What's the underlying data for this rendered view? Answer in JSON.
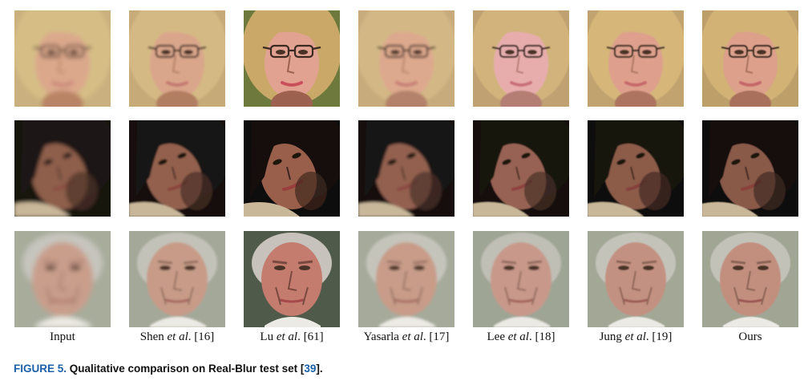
{
  "figure": {
    "columns": [
      {
        "pre": "Input",
        "italic": "",
        "post": ""
      },
      {
        "pre": "Shen ",
        "italic": "et al",
        "post": ". [16]"
      },
      {
        "pre": "Lu ",
        "italic": "et al",
        "post": ". [61]"
      },
      {
        "pre": "Yasarla ",
        "italic": "et al",
        "post": ". [17]"
      },
      {
        "pre": "Lee ",
        "italic": "et al",
        "post": ". [18]"
      },
      {
        "pre": "Jung ",
        "italic": "et al",
        "post": ". [19]"
      },
      {
        "pre": "Ours",
        "italic": "",
        "post": ""
      }
    ],
    "rows": [
      {
        "subject": "young woman with blonde hair and glasses",
        "cells": [
          {
            "blur": 2.6,
            "bg": "#c9b07e",
            "hair": "#d6bd86",
            "skin": "#dba88c",
            "shade": "#b98365",
            "lip": "#c77f77",
            "glasses": true
          },
          {
            "blur": 1.2,
            "bg": "#c6aa78",
            "hair": "#d4b984",
            "skin": "#daa68b",
            "shade": "#b27e62",
            "lip": "#c2746e",
            "glasses": true
          },
          {
            "blur": 0.2,
            "bg": "#6e7a3c",
            "hair": "#caa868",
            "skin": "#e2a292",
            "shade": "#9c6250",
            "lip": "#c9505a",
            "glasses": true
          },
          {
            "blur": 1.6,
            "bg": "#c8ab7b",
            "hair": "#d3b886",
            "skin": "#dda98e",
            "shade": "#b4826a",
            "lip": "#c57a72",
            "glasses": true
          },
          {
            "blur": 0.9,
            "bg": "#c0a272",
            "hair": "#d2b37c",
            "skin": "#e7adad",
            "shade": "#b47e74",
            "lip": "#c96f79",
            "glasses": true
          },
          {
            "blur": 0.7,
            "bg": "#c1a36f",
            "hair": "#d6b679",
            "skin": "#dea08c",
            "shade": "#ad7560",
            "lip": "#c8676a",
            "glasses": true
          },
          {
            "blur": 0.5,
            "bg": "#bd9f6b",
            "hair": "#d3b276",
            "skin": "#dca08b",
            "shade": "#a9715c",
            "lip": "#c66669",
            "glasses": true
          }
        ]
      },
      {
        "subject": "young woman with dark hair, head tilted",
        "cells": [
          {
            "blur": 2.4,
            "bg": "#141211",
            "hair": "#1a1513",
            "skin": "#8e5f4c",
            "shade": "#4e3228",
            "lip": "#8a4a42",
            "glasses": false
          },
          {
            "blur": 1.1,
            "bg": "#121010",
            "hair": "#181312",
            "skin": "#93604d",
            "shade": "#4a2f26",
            "lip": "#8b443e",
            "glasses": false
          },
          {
            "blur": 0.2,
            "bg": "#100e0d",
            "hair": "#161110",
            "skin": "#9a5f4c",
            "shade": "#3e2620",
            "lip": "#9a3c3c",
            "glasses": false
          },
          {
            "blur": 1.5,
            "bg": "#131110",
            "hair": "#191413",
            "skin": "#936150",
            "shade": "#4b3128",
            "lip": "#8a4640",
            "glasses": false
          },
          {
            "blur": 0.9,
            "bg": "#120f0e",
            "hair": "#171211",
            "skin": "#976252",
            "shade": "#473027",
            "lip": "#8e423f",
            "glasses": false
          },
          {
            "blur": 0.7,
            "bg": "#110f0e",
            "hair": "#171211",
            "skin": "#8c5b4a",
            "shade": "#432b24",
            "lip": "#86403b",
            "glasses": false
          },
          {
            "blur": 0.5,
            "bg": "#100e0d",
            "hair": "#161110",
            "skin": "#8a5a4a",
            "shade": "#402922",
            "lip": "#8a3f3b",
            "glasses": false
          }
        ]
      },
      {
        "subject": "older man with grey hair",
        "cells": [
          {
            "blur": 3.2,
            "bg": "#a7ac9b",
            "hair": "#c6c5bd",
            "skin": "#c99e8b",
            "shade": "#9d7566",
            "lip": "#a56a62",
            "glasses": false
          },
          {
            "blur": 1.4,
            "bg": "#a4a899",
            "hair": "#c3c2b9",
            "skin": "#c79b88",
            "shade": "#946e60",
            "lip": "#a0645d",
            "glasses": false
          },
          {
            "blur": 0.1,
            "bg": "#4f5a4c",
            "hair": "#c7c3bc",
            "skin": "#c47c6e",
            "shade": "#7a4a40",
            "lip": "#a64a4c",
            "glasses": false
          },
          {
            "blur": 1.7,
            "bg": "#a6aa9b",
            "hair": "#c5c4bb",
            "skin": "#c89c89",
            "shade": "#997163",
            "lip": "#a2675f",
            "glasses": false
          },
          {
            "blur": 1.0,
            "bg": "#9fa595",
            "hair": "#c0bfb6",
            "skin": "#c8998a",
            "shade": "#916b5e",
            "lip": "#a1625c",
            "glasses": false
          },
          {
            "blur": 0.8,
            "bg": "#a2a796",
            "hair": "#c4c3ba",
            "skin": "#c39181",
            "shade": "#8c6558",
            "lip": "#9c5b56",
            "glasses": false
          },
          {
            "blur": 0.6,
            "bg": "#a0a594",
            "hair": "#c3c2b9",
            "skin": "#c28f7f",
            "shade": "#8a6356",
            "lip": "#9b5954",
            "glasses": false
          }
        ]
      }
    ],
    "caption": {
      "fig_label": "FIGURE 5.",
      "text": " Qualitative comparison on Real-Blur test set [",
      "ref": "39",
      "tail": "]."
    }
  }
}
